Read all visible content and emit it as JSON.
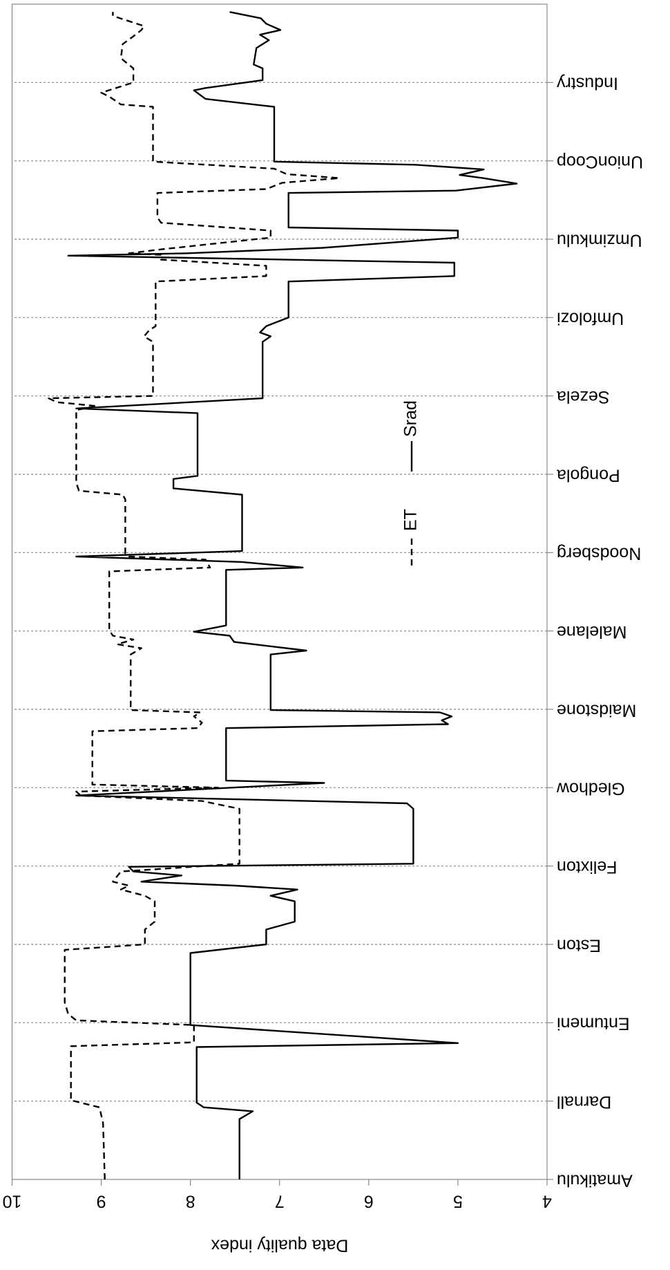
{
  "chart_data": {
    "type": "line",
    "rotation": 180,
    "y_label": "Data quality index",
    "ylim": [
      4,
      10
    ],
    "yticks": [
      4,
      5,
      6,
      7,
      8,
      9,
      10
    ],
    "xlim": [
      0,
      15
    ],
    "xticks": [
      {
        "value": 0,
        "label": "Amatikulu"
      },
      {
        "value": 1,
        "label": "Darnall"
      },
      {
        "value": 2,
        "label": "Entumeni"
      },
      {
        "value": 3,
        "label": "Eston"
      },
      {
        "value": 4,
        "label": "Felixton"
      },
      {
        "value": 5,
        "label": "Gledhow"
      },
      {
        "value": 6,
        "label": "Maidstone"
      },
      {
        "value": 7,
        "label": "Malelane"
      },
      {
        "value": 8,
        "label": "Noodsberg"
      },
      {
        "value": 9,
        "label": "Pongola"
      },
      {
        "value": 10,
        "label": "Sezela"
      },
      {
        "value": 11,
        "label": "Umfolozi"
      },
      {
        "value": 12,
        "label": "Umzimkulu"
      },
      {
        "value": 13,
        "label": "UnionCoop"
      },
      {
        "value": 14,
        "label": "Industry"
      }
    ],
    "grid": true,
    "series": [
      {
        "name": "ET",
        "color": "#000000",
        "dash": "dashed",
        "x": [
          0,
          0.72,
          0.92,
          1.01,
          1.7,
          1.75,
          1.97,
          2.03,
          2.11,
          2.26,
          2.93,
          3.0,
          3.19,
          3.29,
          3.55,
          3.62,
          3.7,
          3.75,
          3.8,
          3.93,
          4.03,
          4.73,
          4.83,
          4.9,
          4.95,
          5.0,
          5.04,
          5.09,
          5.72,
          5.76,
          5.83,
          5.91,
          5.96,
          5.99,
          6.7,
          6.78,
          6.83,
          6.89,
          6.94,
          7.01,
          7.07,
          7.76,
          7.81,
          7.91,
          7.95,
          7.99,
          8.68,
          8.74,
          8.79,
          8.89,
          9.82,
          9.87,
          9.92,
          9.97,
          10.0,
          10.69,
          10.76,
          10.84,
          10.89,
          11.0,
          11.46,
          11.53,
          11.66,
          11.74,
          11.8,
          11.82,
          11.87,
          12.02,
          12.11,
          12.21,
          12.28,
          12.59,
          12.64,
          12.72,
          12.78,
          12.83,
          12.9,
          12.99,
          13.69,
          13.72,
          13.82,
          13.87,
          14.0,
          14.18,
          14.31,
          14.49,
          14.59,
          14.67,
          14.72,
          14.85,
          14.9
        ],
        "values": [
          8.96,
          8.98,
          9.02,
          9.34,
          9.34,
          7.96,
          7.96,
          9.28,
          9.37,
          9.41,
          9.41,
          8.51,
          8.51,
          8.4,
          8.4,
          8.51,
          8.78,
          8.69,
          8.87,
          8.78,
          7.45,
          7.45,
          7.87,
          9.23,
          9.28,
          7.69,
          9.1,
          9.1,
          9.1,
          7.92,
          7.87,
          7.96,
          7.89,
          8.67,
          8.67,
          8.55,
          8.82,
          8.64,
          8.87,
          8.91,
          8.91,
          8.91,
          7.78,
          7.83,
          8.69,
          8.73,
          8.73,
          8.76,
          9.25,
          9.28,
          9.28,
          9.05,
          9.5,
          9.59,
          8.42,
          8.42,
          8.52,
          8.46,
          8.39,
          8.39,
          8.39,
          7.15,
          7.15,
          8.33,
          8.33,
          8.69,
          8.33,
          7.1,
          7.1,
          8.33,
          8.37,
          8.37,
          7.15,
          6.97,
          6.33,
          6.92,
          7.06,
          8.42,
          8.42,
          8.78,
          8.91,
          9.0,
          8.64,
          8.64,
          8.78,
          8.76,
          8.64,
          8.55,
          8.52,
          8.87,
          8.87
        ]
      },
      {
        "name": "Srad",
        "color": "#000000",
        "dash": "solid",
        "x": [
          0,
          0.77,
          0.87,
          0.92,
          0.98,
          1.69,
          1.74,
          1.97,
          2.89,
          3.0,
          3.19,
          3.29,
          3.55,
          3.62,
          3.7,
          3.75,
          3.8,
          3.88,
          3.93,
          3.99,
          4.03,
          4.73,
          4.8,
          4.9,
          5.06,
          5.09,
          5.76,
          5.81,
          5.86,
          5.91,
          5.96,
          5.99,
          6.7,
          6.75,
          6.86,
          6.94,
          6.99,
          7.07,
          7.78,
          7.81,
          7.88,
          7.95,
          8.02,
          8.74,
          8.82,
          8.94,
          8.98,
          9.78,
          9.84,
          9.97,
          10.69,
          10.76,
          10.81,
          10.89,
          11.0,
          11.46,
          11.53,
          11.7,
          11.79,
          11.82,
          11.89,
          12.02,
          12.11,
          12.15,
          12.59,
          12.62,
          12.71,
          12.78,
          12.82,
          12.89,
          12.95,
          12.99,
          13.69,
          13.79,
          13.9,
          13.93,
          14.03,
          14.18,
          14.23,
          14.44,
          14.54,
          14.61,
          14.67,
          14.75,
          14.82,
          14.9
        ],
        "values": [
          7.45,
          7.45,
          7.3,
          7.85,
          7.93,
          7.93,
          5.0,
          8.0,
          8.0,
          7.15,
          7.15,
          6.83,
          6.83,
          7.1,
          6.8,
          7.5,
          8.55,
          8.1,
          8.64,
          8.69,
          5.5,
          5.5,
          5.57,
          9.28,
          6.5,
          7.6,
          7.6,
          5.11,
          5.18,
          5.07,
          5.2,
          7.1,
          7.1,
          6.7,
          7.51,
          7.56,
          7.96,
          7.6,
          7.6,
          6.74,
          7.42,
          9.28,
          7.42,
          7.42,
          8.19,
          8.19,
          7.92,
          7.92,
          9.28,
          7.19,
          7.19,
          7.1,
          7.22,
          7.15,
          6.9,
          6.9,
          5.04,
          5.04,
          9.37,
          8.05,
          6.52,
          5.0,
          5.0,
          6.9,
          6.9,
          5.02,
          4.34,
          4.72,
          4.98,
          4.71,
          5.48,
          7.06,
          7.06,
          7.83,
          7.96,
          7.83,
          7.19,
          7.19,
          7.29,
          7.26,
          7.12,
          7.22,
          6.99,
          7.15,
          7.21,
          7.56
        ]
      }
    ]
  }
}
